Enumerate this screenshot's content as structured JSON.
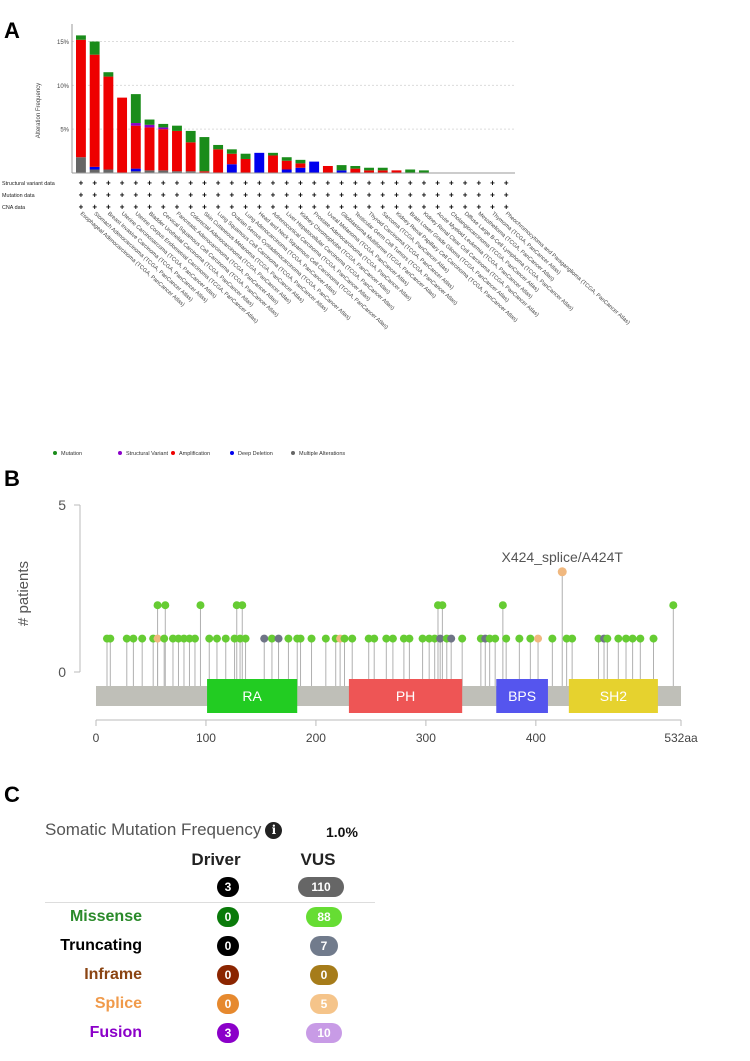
{
  "panel_labels": {
    "a": "A",
    "b": "B",
    "c": "C"
  },
  "chart_data": [
    {
      "type": "bar",
      "stacked": true,
      "ylabel": "Alteration Frequency",
      "yticks": [
        "5%",
        "10%",
        "15%"
      ],
      "ylim": [
        0,
        17
      ],
      "grid": true,
      "categories": [
        "Esophageal Adenocarcinoma (TCGA, PanCancer Atlas)",
        "Stomach Adenocarcinoma (TCGA, PanCancer Atlas)",
        "Breast Invasive Carcinoma (TCGA, PanCancer Atlas)",
        "Uterine Carcinosarcoma (TCGA, PanCancer Atlas)",
        "Uterine Corpus Endometrial Carcinoma (TCGA, PanCancer Atlas)",
        "Bladder Urothelial Carcinoma (TCGA, PanCancer Atlas)",
        "Cervical Squamous Cell Carcinoma (TCGA, PanCancer Atlas)",
        "Pancreatic Adenocarcinoma (TCGA, PanCancer Atlas)",
        "Colorectal Adenocarcinoma (TCGA, PanCancer Atlas)",
        "Skin Cutaneous Melanoma (TCGA, PanCancer Atlas)",
        "Lung Squamous Cell Carcinoma (TCGA, PanCancer Atlas)",
        "Ovarian Serous Cystadenocarcinoma (TCGA, PanCancer Atlas)",
        "Lung Adenocarcinoma (TCGA, PanCancer Atlas)",
        "Head and Neck Squamous Cell Carcinoma (TCGA, PanCancer Atlas)",
        "Adrenocortical Carcinoma (TCGA, PanCancer Atlas)",
        "Liver Hepatocellular Carcinoma (TCGA, PanCancer Atlas)",
        "Kidney Chromophobe (TCGA, PanCancer Atlas)",
        "Prostate Adenocarcinoma (TCGA, PanCancer Atlas)",
        "Uveal Melanoma (TCGA, PanCancer Atlas)",
        "Glioblastoma Multiforme (TCGA, PanCancer Atlas)",
        "Testicular Germ Cell Tumors (TCGA, PanCancer Atlas)",
        "Thyroid Carcinoma (TCGA, PanCancer Atlas)",
        "Sarcoma (TCGA, PanCancer Atlas)",
        "Kidney Renal Papillary Cell Carcinoma (TCGA, PanCancer Atlas)",
        "Brain Lower Grade Glioma (TCGA, PanCancer Atlas)",
        "Kidney Renal Clear Cell Carcinoma (TCGA, PanCancer Atlas)",
        "Acute Myeloid Leukemia (TCGA, PanCancer Atlas)",
        "Cholangiocarcinoma (TCGA, PanCancer Atlas)",
        "Diffuse Large B-Cell Lymphoma (TCGA, PanCancer Atlas)",
        "Mesothelioma (TCGA, PanCancer Atlas)",
        "Thymoma (TCGA, PanCancer Atlas)",
        "Pheochromocytoma and Paraganglioma (TCGA, PanCancer Atlas)"
      ],
      "series": [
        {
          "name": "Multiple Alterations",
          "color": "#666666",
          "values": [
            1.8,
            0.4,
            0.4,
            0,
            0.2,
            0.3,
            0.3,
            0.2,
            0.2,
            0,
            0,
            0,
            0,
            0,
            0,
            0,
            0,
            0,
            0,
            0,
            0,
            0,
            0,
            0,
            0,
            0,
            0,
            0,
            0,
            0,
            0,
            0
          ]
        },
        {
          "name": "Deep Deletion",
          "color": "#0000ee",
          "values": [
            0,
            0.3,
            0,
            0,
            0.3,
            0,
            0,
            0,
            0,
            0,
            0,
            1,
            0,
            2.3,
            0,
            0.4,
            0.6,
            1.3,
            0,
            0.3,
            0,
            0,
            0,
            0,
            0,
            0,
            0,
            0,
            0,
            0,
            0,
            0
          ]
        },
        {
          "name": "Amplification",
          "color": "#ee0000",
          "values": [
            13.4,
            12.8,
            10.6,
            8.6,
            4.9,
            4.9,
            4.7,
            4.6,
            3.3,
            0.2,
            2.7,
            1.2,
            1.6,
            0,
            2.0,
            1.0,
            0.5,
            0,
            0.8,
            0,
            0.5,
            0.3,
            0.3,
            0.3,
            0,
            0,
            0,
            0,
            0,
            0,
            0,
            0
          ]
        },
        {
          "name": "Structural Variant",
          "color": "#8b00c9",
          "values": [
            0,
            0,
            0,
            0,
            0.3,
            0.3,
            0.2,
            0,
            0,
            0,
            0,
            0,
            0,
            0,
            0,
            0,
            0,
            0,
            0,
            0,
            0,
            0,
            0,
            0,
            0,
            0,
            0,
            0,
            0,
            0,
            0,
            0
          ]
        },
        {
          "name": "Mutation",
          "color": "#1a8c1a",
          "values": [
            0.5,
            1.5,
            0.5,
            0,
            3.3,
            0.6,
            0.4,
            0.6,
            1.3,
            3.9,
            0.5,
            0.5,
            0.6,
            0,
            0.3,
            0.4,
            0.4,
            0,
            0,
            0.6,
            0.3,
            0.3,
            0.3,
            0,
            0.4,
            0.3,
            0,
            0,
            0,
            0,
            0,
            0
          ]
        }
      ],
      "legend": [
        "Mutation",
        "Structural Variant",
        "Amplification",
        "Deep Deletion",
        "Multiple Alterations"
      ],
      "legend_position": "bottom",
      "profiled_rows": [
        "Structural variant data",
        "Mutation data",
        "CNA data"
      ],
      "profiled_mark": "+"
    },
    {
      "type": "scatter",
      "subtype": "lollipop",
      "ylabel": "# patients",
      "yticks": [
        "0",
        "5"
      ],
      "ylim": [
        0,
        5
      ],
      "xticks": [
        "0",
        "100",
        "200",
        "300",
        "400"
      ],
      "xmax": 532,
      "xmax_label": "532aa",
      "domains": [
        {
          "name": "RA",
          "start": 101,
          "end": 183,
          "color": "#22cc22"
        },
        {
          "name": "PH",
          "start": 230,
          "end": 333,
          "color": "#ee5555"
        },
        {
          "name": "BPS",
          "start": 364,
          "end": 411,
          "color": "#5555ee"
        },
        {
          "name": "SH2",
          "start": 430,
          "end": 511,
          "color": "#e6d22e"
        }
      ],
      "annotation": {
        "text": "X424_splice/A424T",
        "x": 424,
        "count": 3
      },
      "points": [
        {
          "x": 10,
          "count": 1,
          "type": "missense"
        },
        {
          "x": 13,
          "count": 1,
          "type": "missense"
        },
        {
          "x": 28,
          "count": 1,
          "type": "missense"
        },
        {
          "x": 34,
          "count": 1,
          "type": "missense"
        },
        {
          "x": 42,
          "count": 1,
          "type": "missense"
        },
        {
          "x": 52,
          "count": 1,
          "type": "missense"
        },
        {
          "x": 56,
          "count": 1,
          "type": "splice"
        },
        {
          "x": 56,
          "count": 2,
          "type": "missense"
        },
        {
          "x": 63,
          "count": 2,
          "type": "missense"
        },
        {
          "x": 62,
          "count": 1,
          "type": "missense"
        },
        {
          "x": 70,
          "count": 1,
          "type": "missense"
        },
        {
          "x": 75,
          "count": 1,
          "type": "missense"
        },
        {
          "x": 80,
          "count": 1,
          "type": "missense"
        },
        {
          "x": 85,
          "count": 1,
          "type": "missense"
        },
        {
          "x": 90,
          "count": 1,
          "type": "missense"
        },
        {
          "x": 95,
          "count": 2,
          "type": "missense"
        },
        {
          "x": 103,
          "count": 1,
          "type": "missense"
        },
        {
          "x": 110,
          "count": 1,
          "type": "missense"
        },
        {
          "x": 118,
          "count": 1,
          "type": "missense"
        },
        {
          "x": 126,
          "count": 1,
          "type": "missense"
        },
        {
          "x": 128,
          "count": 2,
          "type": "missense"
        },
        {
          "x": 131,
          "count": 1,
          "type": "missense"
        },
        {
          "x": 133,
          "count": 2,
          "type": "missense"
        },
        {
          "x": 136,
          "count": 1,
          "type": "missense"
        },
        {
          "x": 153,
          "count": 1,
          "type": "truncating"
        },
        {
          "x": 160,
          "count": 1,
          "type": "missense"
        },
        {
          "x": 166,
          "count": 1,
          "type": "truncating"
        },
        {
          "x": 175,
          "count": 1,
          "type": "missense"
        },
        {
          "x": 183,
          "count": 1,
          "type": "missense"
        },
        {
          "x": 186,
          "count": 1,
          "type": "missense"
        },
        {
          "x": 196,
          "count": 1,
          "type": "missense"
        },
        {
          "x": 209,
          "count": 1,
          "type": "missense"
        },
        {
          "x": 218,
          "count": 1,
          "type": "missense"
        },
        {
          "x": 222,
          "count": 1,
          "type": "splice"
        },
        {
          "x": 226,
          "count": 1,
          "type": "missense"
        },
        {
          "x": 233,
          "count": 1,
          "type": "missense"
        },
        {
          "x": 248,
          "count": 1,
          "type": "missense"
        },
        {
          "x": 253,
          "count": 1,
          "type": "missense"
        },
        {
          "x": 264,
          "count": 1,
          "type": "missense"
        },
        {
          "x": 270,
          "count": 1,
          "type": "missense"
        },
        {
          "x": 280,
          "count": 1,
          "type": "missense"
        },
        {
          "x": 285,
          "count": 1,
          "type": "missense"
        },
        {
          "x": 297,
          "count": 1,
          "type": "missense"
        },
        {
          "x": 303,
          "count": 1,
          "type": "missense"
        },
        {
          "x": 308,
          "count": 1,
          "type": "missense"
        },
        {
          "x": 311,
          "count": 2,
          "type": "missense"
        },
        {
          "x": 313,
          "count": 1,
          "type": "truncating"
        },
        {
          "x": 315,
          "count": 2,
          "type": "missense"
        },
        {
          "x": 319,
          "count": 1,
          "type": "missense"
        },
        {
          "x": 323,
          "count": 1,
          "type": "truncating"
        },
        {
          "x": 333,
          "count": 1,
          "type": "missense"
        },
        {
          "x": 350,
          "count": 1,
          "type": "missense"
        },
        {
          "x": 354,
          "count": 1,
          "type": "truncating"
        },
        {
          "x": 358,
          "count": 1,
          "type": "missense"
        },
        {
          "x": 363,
          "count": 1,
          "type": "missense"
        },
        {
          "x": 370,
          "count": 2,
          "type": "missense"
        },
        {
          "x": 373,
          "count": 1,
          "type": "missense"
        },
        {
          "x": 385,
          "count": 1,
          "type": "missense"
        },
        {
          "x": 395,
          "count": 1,
          "type": "missense"
        },
        {
          "x": 402,
          "count": 1,
          "type": "splice"
        },
        {
          "x": 415,
          "count": 1,
          "type": "missense"
        },
        {
          "x": 428,
          "count": 1,
          "type": "missense"
        },
        {
          "x": 433,
          "count": 1,
          "type": "missense"
        },
        {
          "x": 457,
          "count": 1,
          "type": "missense"
        },
        {
          "x": 462,
          "count": 1,
          "type": "truncating"
        },
        {
          "x": 465,
          "count": 1,
          "type": "missense"
        },
        {
          "x": 475,
          "count": 1,
          "type": "missense"
        },
        {
          "x": 482,
          "count": 1,
          "type": "missense"
        },
        {
          "x": 488,
          "count": 1,
          "type": "missense"
        },
        {
          "x": 495,
          "count": 1,
          "type": "missense"
        },
        {
          "x": 507,
          "count": 1,
          "type": "missense"
        },
        {
          "x": 525,
          "count": 2,
          "type": "missense"
        }
      ],
      "point_colors": {
        "missense": "#66cc33",
        "splice": "#f0b87f",
        "truncating": "#6f7486",
        "annotated": "#f0b87f"
      }
    }
  ],
  "table": {
    "title": "Somatic Mutation Frequency",
    "info_glyph": "i",
    "percent": "1.0%",
    "headers": {
      "driver": "Driver",
      "vus": "VUS"
    },
    "totals": {
      "driver": "3",
      "vus": "110",
      "driver_color": "#000000",
      "vus_color": "#666666"
    },
    "rows": [
      {
        "label": "Missense",
        "label_color": "#2a8a2a",
        "driver": "0",
        "vus": "88",
        "driver_color": "#0a7a0a",
        "vus_color": "#66dd33"
      },
      {
        "label": "Truncating",
        "label_color": "#000000",
        "driver": "0",
        "vus": "7",
        "driver_color": "#000000",
        "vus_color": "#717b8c"
      },
      {
        "label": "Inframe",
        "label_color": "#8b4513",
        "driver": "0",
        "vus": "0",
        "driver_color": "#8b2500",
        "vus_color": "#a67c1a"
      },
      {
        "label": "Splice",
        "label_color": "#f09a4a",
        "driver": "0",
        "vus": "5",
        "driver_color": "#e6892e",
        "vus_color": "#f5c48a"
      },
      {
        "label": "Fusion",
        "label_color": "#8b00c9",
        "driver": "3",
        "vus": "10",
        "driver_color": "#8b00c9",
        "vus_color": "#c89be6"
      }
    ]
  }
}
